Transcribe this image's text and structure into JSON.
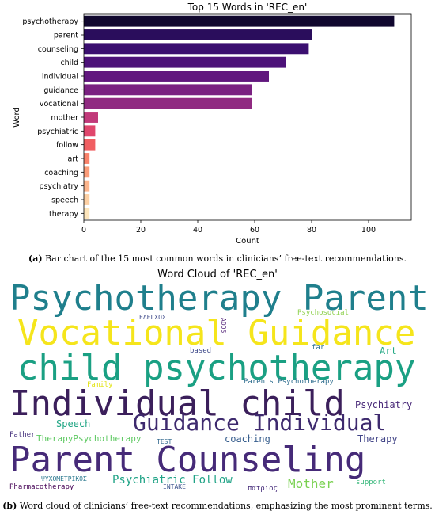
{
  "chart_data": [
    {
      "type": "bar",
      "orientation": "horizontal",
      "title": "Top 15 Words in 'REC_en'",
      "xlabel": "Count",
      "ylabel": "Word",
      "xlim": [
        0,
        115
      ],
      "xticks": [
        0,
        20,
        40,
        60,
        80,
        100
      ],
      "categories": [
        "psychotherapy",
        "parent",
        "counseling",
        "child",
        "individual",
        "guidance",
        "vocational",
        "mother",
        "psychiatric",
        "follow",
        "art",
        "coaching",
        "psychiatry",
        "speech",
        "therapy"
      ],
      "values": [
        109,
        80,
        79,
        71,
        65,
        59,
        59,
        5,
        4,
        4,
        2,
        2,
        2,
        2,
        2
      ],
      "colors": [
        "#10072e",
        "#2a0d5c",
        "#3b0f70",
        "#4d1279",
        "#61177e",
        "#7a2181",
        "#902a81",
        "#c13a7a",
        "#e0466c",
        "#f05f62",
        "#f9826a",
        "#fb9c79",
        "#fcb58d",
        "#fdd0a4",
        "#fde5bb"
      ],
      "grid": false
    },
    {
      "type": "wordcloud",
      "title": "Word Cloud of 'REC_en'",
      "words": [
        {
          "text": "Psychotherapy Parent",
          "color": "#1f7f8c"
        },
        {
          "text": "Vocational Guidance",
          "color": "#f5e51b"
        },
        {
          "text": "child psychotherapy",
          "color": "#1aa083"
        },
        {
          "text": "Individual child",
          "color": "#3b1f5b"
        },
        {
          "text": "Guidance Individual",
          "color": "#3e2a6e"
        },
        {
          "text": "Parent Counseling",
          "color": "#462a78"
        },
        {
          "text": "ΕΛΕΓΧΟΣ",
          "color": "#3f4a8a"
        },
        {
          "text": "ADOS",
          "color": "#5c2f80"
        },
        {
          "text": "Psychosocial",
          "color": "#8fd14f"
        },
        {
          "text": "based",
          "color": "#3f4a8a"
        },
        {
          "text": "far",
          "color": "#2c6f8e"
        },
        {
          "text": "Art",
          "color": "#22a884"
        },
        {
          "text": "Family",
          "color": "#e3e418"
        },
        {
          "text": "Parents Psychotherapy",
          "color": "#2e6d8e"
        },
        {
          "text": "Psychiatry",
          "color": "#482878"
        },
        {
          "text": "Speech",
          "color": "#21a685"
        },
        {
          "text": "Father",
          "color": "#46327e"
        },
        {
          "text": "TherapyPsychotherapy",
          "color": "#5ec962"
        },
        {
          "text": "TEST",
          "color": "#31688e"
        },
        {
          "text": "coaching",
          "color": "#365d8d"
        },
        {
          "text": "Therapy",
          "color": "#414487"
        },
        {
          "text": "ΨΥΧΟΜΕΤΡΙΚΟΣ",
          "color": "#2a788e"
        },
        {
          "text": "INTAKE",
          "color": "#3b528b"
        },
        {
          "text": "Pharmacotherapy",
          "color": "#440154"
        },
        {
          "text": "Psychiatric Follow",
          "color": "#20a386"
        },
        {
          "text": "Mother",
          "color": "#7ad151"
        },
        {
          "text": "πατριος",
          "color": "#472d7b"
        },
        {
          "text": "support",
          "color": "#35b779"
        }
      ]
    }
  ],
  "captions": {
    "a_label": "(a)",
    "a_text": " Bar chart of the 15 most common words in clinicians’ free-text recommendations.",
    "b_label": "(b)",
    "b_text": " Word cloud of clinicians’ free-text recommendations, emphasizing the most prominent terms."
  }
}
